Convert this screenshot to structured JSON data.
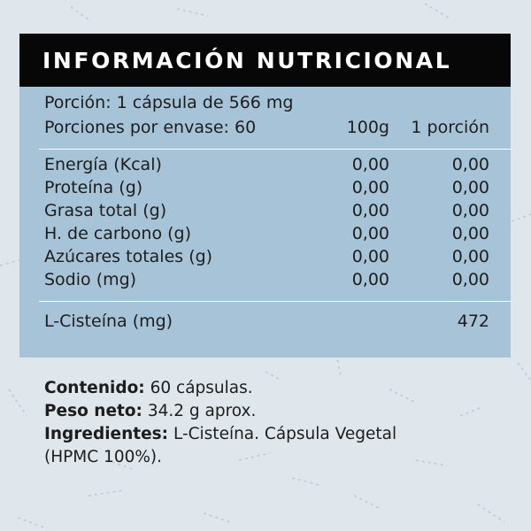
{
  "header": {
    "title": "INFORMACIÓN NUTRICIONAL"
  },
  "serving": {
    "portion": "Porción: 1 cápsula de 566 mg",
    "servings_per_container": "Porciones por envase: 60",
    "col_100g": "100g",
    "col_portion": "1 porción"
  },
  "nutrients": [
    {
      "name": "Energía (Kcal)",
      "per_100g": "0,00",
      "per_portion": "0,00"
    },
    {
      "name": "Proteína (g)",
      "per_100g": "0,00",
      "per_portion": "0,00"
    },
    {
      "name": "Grasa total (g)",
      "per_100g": "0,00",
      "per_portion": "0,00"
    },
    {
      "name": "H. de carbono (g)",
      "per_100g": "0,00",
      "per_portion": "0,00"
    },
    {
      "name": "Azúcares totales (g)",
      "per_100g": "0,00",
      "per_portion": "0,00"
    },
    {
      "name": "Sodio (mg)",
      "per_100g": "0,00",
      "per_portion": "0,00"
    }
  ],
  "active": {
    "name": "L-Cisteína (mg)",
    "per_portion": "472"
  },
  "footer": {
    "contenido_label": "Contenido:",
    "contenido_value": " 60 cápsulas.",
    "peso_label": "Peso neto:",
    "peso_value": " 34.2 g aprox.",
    "ingredientes_label": "Ingredientes:",
    "ingredientes_value_line1": " L-Cisteína. Cápsula Vegetal",
    "ingredientes_value_line2": "(HPMC 100%)."
  },
  "colors": {
    "page_background": "#dfe6ec",
    "header_background": "#070707",
    "table_background": "#a7c3d8"
  }
}
